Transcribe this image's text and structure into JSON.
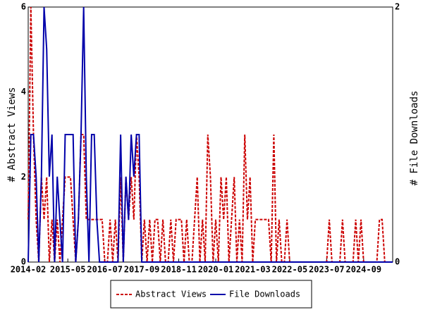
{
  "chart_data": {
    "type": "line",
    "x": [
      "2014-02",
      "2014-03",
      "2014-04",
      "2014-05",
      "2014-06",
      "2014-07",
      "2014-08",
      "2014-09",
      "2014-10",
      "2014-11",
      "2014-12",
      "2015-01",
      "2015-02",
      "2015-03",
      "2015-04",
      "2015-05",
      "2015-06",
      "2015-07",
      "2015-08",
      "2015-09",
      "2015-10",
      "2015-11",
      "2015-12",
      "2016-01",
      "2016-02",
      "2016-03",
      "2016-04",
      "2016-05",
      "2016-06",
      "2016-07",
      "2016-08",
      "2016-09",
      "2016-10",
      "2016-11",
      "2016-12",
      "2017-01",
      "2017-02",
      "2017-03",
      "2017-04",
      "2017-05",
      "2017-06",
      "2017-07",
      "2017-08",
      "2017-09",
      "2017-10",
      "2017-11",
      "2017-12",
      "2018-01",
      "2018-02",
      "2018-03",
      "2018-04",
      "2018-05",
      "2018-06",
      "2018-07",
      "2018-08",
      "2018-09",
      "2018-10",
      "2018-11",
      "2018-12",
      "2019-01",
      "2019-02",
      "2019-03",
      "2019-04",
      "2019-05",
      "2019-06",
      "2019-07",
      "2019-08",
      "2019-09",
      "2019-10",
      "2019-11",
      "2019-12",
      "2020-01",
      "2020-02",
      "2020-03",
      "2020-04",
      "2020-05",
      "2020-06",
      "2020-07",
      "2020-08",
      "2020-09",
      "2020-10",
      "2020-11",
      "2020-12",
      "2021-01",
      "2021-02",
      "2021-03",
      "2021-04",
      "2021-05",
      "2021-06",
      "2021-07",
      "2021-08",
      "2021-09",
      "2021-10",
      "2021-11",
      "2021-12",
      "2022-01",
      "2022-02",
      "2022-03",
      "2022-04",
      "2022-05",
      "2022-06",
      "2022-07",
      "2022-08",
      "2022-09",
      "2022-10",
      "2022-11",
      "2022-12",
      "2023-01",
      "2023-02",
      "2023-03",
      "2023-04",
      "2023-05",
      "2023-06",
      "2023-07",
      "2023-08",
      "2023-09",
      "2023-10",
      "2023-11",
      "2023-12",
      "2024-01",
      "2024-02",
      "2024-03",
      "2024-04",
      "2024-05",
      "2024-06",
      "2024-07",
      "2024-08",
      "2024-09",
      "2024-10",
      "2024-11",
      "2024-12",
      "2025-01",
      "2025-02",
      "2025-03",
      "2025-04",
      "2025-05",
      "2025-06",
      "2025-07",
      "2025-08"
    ],
    "xlim": [
      "2014-02",
      "2025-08"
    ],
    "xticks": [
      "2014-02",
      "2015-05",
      "2016-07",
      "2017-09",
      "2018-11",
      "2020-01",
      "2021-03",
      "2022-05",
      "2023-07",
      "2024-09"
    ],
    "ylabel": "# Abstract Views",
    "y2label": "# File Downloads",
    "ylim": [
      0,
      6
    ],
    "yticks": [
      0,
      2,
      4,
      6
    ],
    "y2lim": [
      0,
      2
    ],
    "y2ticks": [
      0,
      2
    ],
    "legend": "bottom",
    "series": [
      {
        "name": "Abstract Views",
        "color": "#cc0000",
        "dashed": true,
        "values": [
          1,
          6,
          3,
          1,
          0,
          2,
          1,
          2,
          0,
          1,
          0,
          1,
          0,
          1,
          2,
          2,
          2,
          1,
          0,
          1,
          3,
          3,
          1,
          1,
          1,
          1,
          1,
          1,
          1,
          0,
          0,
          1,
          0,
          1,
          0,
          2,
          0,
          2,
          1,
          2,
          1,
          3,
          2,
          0,
          1,
          0,
          1,
          0,
          1,
          1,
          0,
          1,
          0,
          0,
          1,
          0,
          1,
          1,
          1,
          0,
          1,
          0,
          0,
          1,
          2,
          0,
          1,
          0,
          3,
          2,
          0,
          1,
          0,
          2,
          1,
          2,
          0,
          1,
          2,
          0,
          1,
          0,
          3,
          1,
          2,
          0,
          1,
          1,
          1,
          1,
          1,
          1,
          0,
          3,
          0,
          1,
          0,
          0,
          1,
          0,
          0,
          0,
          0,
          0,
          0,
          0,
          0,
          0,
          0,
          0,
          0,
          0,
          0,
          0,
          1,
          0,
          0,
          0,
          0,
          1,
          0,
          0,
          0,
          0,
          1,
          0,
          1,
          0,
          0,
          0,
          0,
          0,
          0,
          1,
          1,
          0,
          0,
          0,
          0
        ]
      },
      {
        "name": "File Downloads",
        "color": "#0000aa",
        "axis": "y2",
        "values": [
          0,
          1,
          1,
          0.67,
          0,
          0.67,
          2,
          1.67,
          0.67,
          1,
          0,
          0.67,
          0.33,
          0,
          1,
          1,
          1,
          1,
          0,
          0.33,
          1,
          2,
          0.67,
          0,
          1,
          1,
          0.33,
          0,
          0,
          0,
          0,
          0,
          0,
          0,
          0,
          1,
          0,
          0.67,
          0.33,
          1,
          0.67,
          1,
          1,
          0,
          0,
          0,
          0,
          0,
          0,
          0,
          0,
          0,
          0,
          0,
          0,
          0,
          0,
          0,
          0,
          0,
          0,
          0,
          0,
          0,
          0,
          0,
          0,
          0,
          0,
          0,
          0,
          0,
          0,
          0,
          0,
          0,
          0,
          0,
          0,
          0,
          0,
          0,
          0,
          0,
          0,
          0,
          0,
          0,
          0,
          0,
          0,
          0,
          0,
          0,
          0,
          0,
          0,
          0,
          0,
          0,
          0,
          0,
          0,
          0,
          0,
          0,
          0,
          0,
          0,
          0,
          0,
          0,
          0,
          0,
          0,
          0,
          0,
          0,
          0,
          0,
          0,
          0,
          0,
          0,
          0,
          0,
          0,
          0,
          0,
          0,
          0,
          0,
          0,
          0,
          0,
          0,
          0,
          0,
          0
        ]
      }
    ]
  }
}
